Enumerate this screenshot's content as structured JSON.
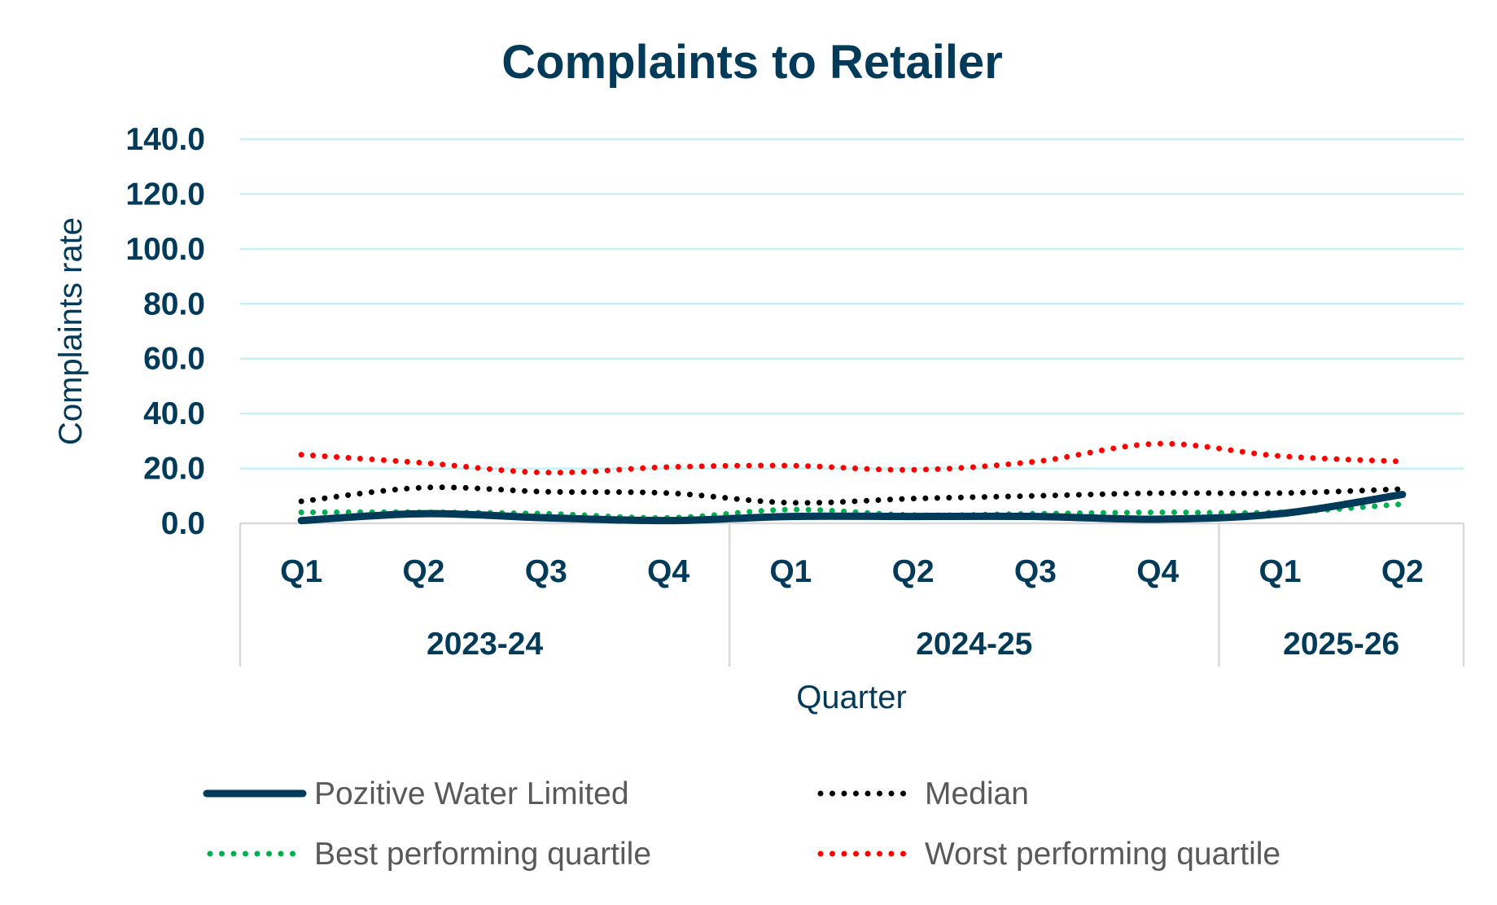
{
  "chart_data": {
    "type": "line",
    "title": "Complaints to Retailer",
    "xlabel": "Quarter",
    "ylabel": "Complaints rate",
    "ylim": [
      0,
      140
    ],
    "yticks": [
      "0.0",
      "20.0",
      "40.0",
      "60.0",
      "80.0",
      "100.0",
      "120.0",
      "140.0"
    ],
    "grid": true,
    "legend_position": "bottom",
    "categories": [
      "Q1",
      "Q2",
      "Q3",
      "Q4",
      "Q1",
      "Q2",
      "Q3",
      "Q4",
      "Q1",
      "Q2"
    ],
    "groups": [
      {
        "label": "2023-24",
        "count": 4
      },
      {
        "label": "2024-25",
        "count": 4
      },
      {
        "label": "2025-26",
        "count": 2
      }
    ],
    "series": [
      {
        "name": "Pozitive Water Limited",
        "color": "#023a5a",
        "style": "solid",
        "values": [
          1.0,
          3.5,
          2.0,
          1.0,
          2.5,
          2.5,
          2.5,
          1.5,
          3.5,
          10.5
        ]
      },
      {
        "name": "Median",
        "color": "#000000",
        "style": "dotted",
        "values": [
          8.0,
          13.0,
          11.5,
          11.0,
          7.5,
          9.0,
          10.0,
          11.0,
          11.0,
          12.5
        ]
      },
      {
        "name": "Best performing quartile",
        "color": "#00b050",
        "style": "dotted",
        "values": [
          4.0,
          4.0,
          3.5,
          2.0,
          5.0,
          3.0,
          3.5,
          4.0,
          4.0,
          7.0
        ]
      },
      {
        "name": "Worst performing quartile",
        "color": "#ff0000",
        "style": "dotted",
        "values": [
          25.0,
          22.0,
          18.5,
          20.5,
          21.0,
          19.5,
          22.5,
          29.0,
          24.5,
          22.5
        ]
      }
    ],
    "gridline_color": "#c5f1f2",
    "axis_color": "#d9d9d9"
  }
}
